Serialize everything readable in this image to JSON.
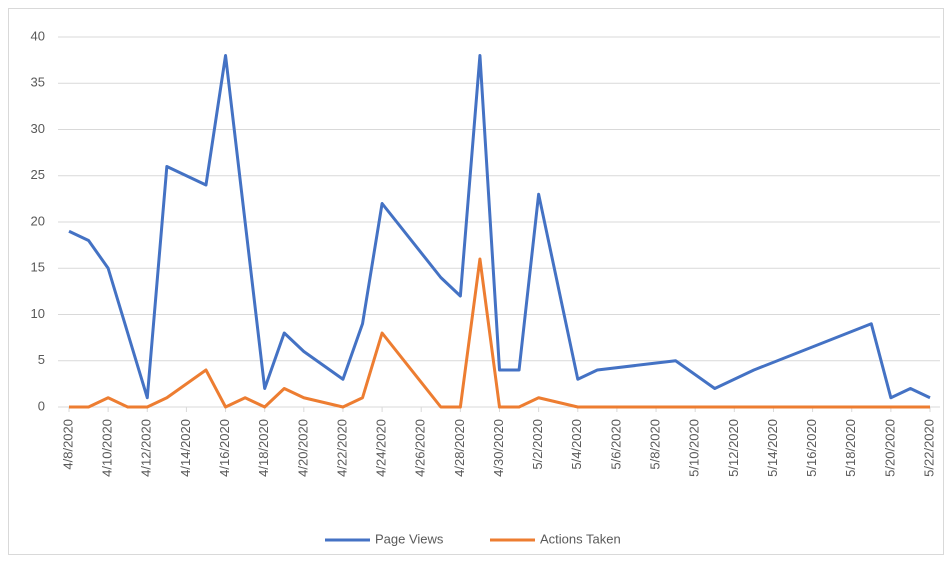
{
  "chart_data": {
    "type": "line",
    "x": [
      "4/8/2020",
      "4/9/2020",
      "4/10/2020",
      "4/11/2020",
      "4/12/2020",
      "4/13/2020",
      "4/15/2020",
      "4/16/2020",
      "4/17/2020",
      "4/18/2020",
      "4/19/2020",
      "4/20/2020",
      "4/22/2020",
      "4/23/2020",
      "4/24/2020",
      "4/27/2020",
      "4/28/2020",
      "4/29/2020",
      "4/30/2020",
      "5/1/2020",
      "5/2/2020",
      "5/4/2020",
      "5/5/2020",
      "5/9/2020",
      "5/11/2020",
      "5/13/2020",
      "5/19/2020",
      "5/20/2020",
      "5/21/2020",
      "5/22/2020"
    ],
    "series": [
      {
        "name": "Page Views",
        "color": "#4472c4",
        "values": [
          19,
          18,
          15,
          8,
          1,
          26,
          24,
          38,
          20,
          2,
          8,
          6,
          3,
          9,
          22,
          14,
          12,
          38,
          4,
          4,
          23,
          3,
          4,
          5,
          2,
          4,
          9,
          1,
          2,
          1
        ]
      },
      {
        "name": "Actions Taken",
        "color": "#ed7d31",
        "values": [
          0,
          0,
          1,
          0,
          0,
          1,
          4,
          0,
          1,
          0,
          2,
          1,
          0,
          1,
          8,
          0,
          0,
          16,
          0,
          0,
          1,
          0,
          0,
          0,
          0,
          0,
          0,
          0,
          0,
          0
        ]
      }
    ],
    "xlim": [
      "4/8/2020",
      "5/22/2020"
    ],
    "xticks": [
      "4/8/2020",
      "4/10/2020",
      "4/12/2020",
      "4/14/2020",
      "4/16/2020",
      "4/18/2020",
      "4/20/2020",
      "4/22/2020",
      "4/24/2020",
      "4/26/2020",
      "4/28/2020",
      "4/30/2020",
      "5/2/2020",
      "5/4/2020",
      "5/6/2020",
      "5/8/2020",
      "5/10/2020",
      "5/12/2020",
      "5/14/2020",
      "5/16/2020",
      "5/18/2020",
      "5/20/2020",
      "5/22/2020"
    ],
    "ylim": [
      0,
      40
    ],
    "yticks": [
      0,
      5,
      10,
      15,
      20,
      25,
      30,
      35,
      40
    ],
    "grid": true,
    "legend": "bottom"
  }
}
